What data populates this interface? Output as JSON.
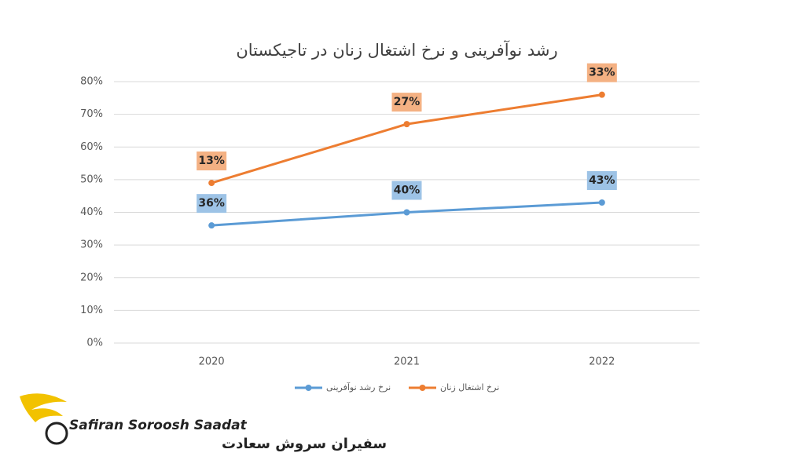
{
  "chart_data": {
    "type": "line",
    "stacked": true,
    "title": "رشد نوآفرینی و نرخ اشتغال زنان در تاجیکستان",
    "categories": [
      "2020",
      "2021",
      "2022"
    ],
    "series": [
      {
        "name": "نرخ رشد نوآفرینی",
        "color": "#5b9bd5",
        "label_color": "#9dc3e6",
        "values": [
          36,
          40,
          43
        ],
        "value_labels": [
          "36%",
          "40%",
          "43%"
        ]
      },
      {
        "name": "نرخ اشتغال زنان",
        "color": "#ed7d31",
        "label_color": "#f4b183",
        "values": [
          13,
          27,
          33
        ],
        "value_labels": [
          "13%",
          "27%",
          "33%"
        ]
      }
    ],
    "ylim": [
      0,
      80
    ],
    "yticks": [
      {
        "value": 0,
        "label": "0%"
      },
      {
        "value": 10,
        "label": "10%"
      },
      {
        "value": 20,
        "label": "20%"
      },
      {
        "value": 30,
        "label": "30%"
      },
      {
        "value": 40,
        "label": "40%"
      },
      {
        "value": 50,
        "label": "50%"
      },
      {
        "value": 60,
        "label": "60%"
      },
      {
        "value": 70,
        "label": "70%"
      },
      {
        "value": 80,
        "label": "80%"
      }
    ],
    "grid": true,
    "legend": "bottom"
  },
  "logo": {
    "name_en": "Safiran Soroosh Saadat",
    "name_fa": "سفیران سروش سعادت"
  }
}
